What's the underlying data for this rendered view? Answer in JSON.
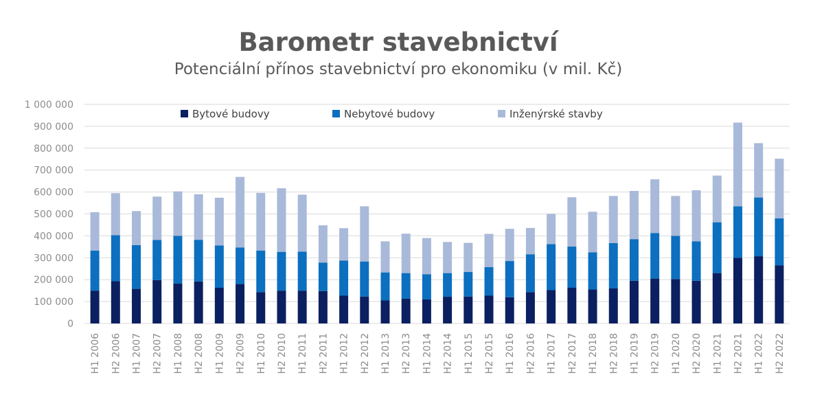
{
  "header": {
    "title": "Barometr stavebnictví",
    "subtitle": "Potenciální přínos stavebnictví pro ekonomiku (v mil. Kč)"
  },
  "chart_data": {
    "type": "bar",
    "stacked": true,
    "title": "Barometr stavebnictví",
    "subtitle": "Potenciální přínos stavebnictví pro ekonomiku (v mil. Kč)",
    "ylim": [
      0,
      1000000
    ],
    "yticks": [
      0,
      100000,
      200000,
      300000,
      400000,
      500000,
      600000,
      700000,
      800000,
      900000,
      1000000
    ],
    "ytick_labels": [
      "0",
      "100 000",
      "200 000",
      "300 000",
      "400 000",
      "500 000",
      "600 000",
      "700 000",
      "800 000",
      "900 000",
      "1 000 000"
    ],
    "grid": true,
    "legend_position": "top",
    "categories": [
      "H1 2006",
      "H2 2006",
      "H1 2007",
      "H2 2007",
      "H1 2008",
      "H2 2008",
      "H1 2009",
      "H2 2009",
      "H1 2010",
      "H2 2010",
      "H1 2011",
      "H2 2011",
      "H1 2012",
      "H2 2012",
      "H1 2013",
      "H2 2013",
      "H1 2014",
      "H2 2014",
      "H1 2015",
      "H2 2015",
      "H1 2016",
      "H2 2016",
      "H1 2017",
      "H2 2017",
      "H1 2018",
      "H2 2018",
      "H1 2019",
      "H2 2019",
      "H1 2020",
      "H2 2020",
      "H1 2021",
      "H2 2021",
      "H1 2022",
      "H2 2022"
    ],
    "series": [
      {
        "name": "Bytové budovy",
        "color": "#0b2060",
        "values": [
          150000,
          193000,
          158000,
          198000,
          182000,
          192000,
          163000,
          180000,
          143000,
          150000,
          150000,
          148000,
          127000,
          123000,
          105000,
          113000,
          110000,
          122000,
          123000,
          127000,
          120000,
          143000,
          152000,
          163000,
          155000,
          160000,
          195000,
          205000,
          203000,
          195000,
          230000,
          300000,
          307000,
          265000
        ]
      },
      {
        "name": "Nebytové budovy",
        "color": "#0c6fbf",
        "values": [
          183000,
          210000,
          200000,
          183000,
          218000,
          190000,
          193000,
          167000,
          190000,
          177000,
          178000,
          130000,
          160000,
          160000,
          128000,
          117000,
          115000,
          108000,
          112000,
          130000,
          165000,
          173000,
          210000,
          188000,
          170000,
          207000,
          190000,
          208000,
          197000,
          180000,
          232000,
          235000,
          268000,
          215000
        ]
      },
      {
        "name": "Inženýrské stavby",
        "color": "#a9b9d9",
        "values": [
          175000,
          192000,
          155000,
          198000,
          203000,
          208000,
          218000,
          322000,
          263000,
          290000,
          260000,
          170000,
          148000,
          252000,
          142000,
          180000,
          165000,
          142000,
          133000,
          152000,
          147000,
          120000,
          138000,
          225000,
          185000,
          215000,
          220000,
          245000,
          182000,
          233000,
          213000,
          382000,
          248000,
          272000
        ]
      }
    ]
  }
}
